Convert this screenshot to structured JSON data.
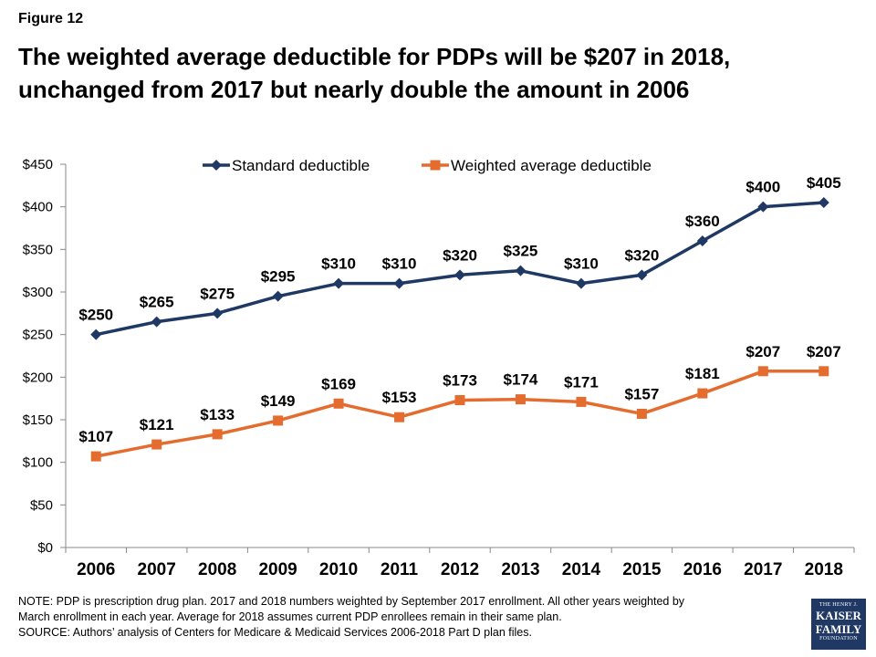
{
  "figure_label": "Figure 12",
  "title_lines": [
    "The weighted average deductible for PDPs will be $207 in 2018,",
    "unchanged from 2017 but nearly double the amount in 2006"
  ],
  "chart_data": {
    "type": "line",
    "x": [
      "2006",
      "2007",
      "2008",
      "2009",
      "2010",
      "2011",
      "2012",
      "2013",
      "2014",
      "2015",
      "2016",
      "2017",
      "2018"
    ],
    "series": [
      {
        "name": "Standard deductible",
        "color": "#1f3864",
        "values": [
          250,
          265,
          275,
          295,
          310,
          310,
          320,
          325,
          310,
          320,
          360,
          400,
          405
        ],
        "labels": [
          "$250",
          "$265",
          "$275",
          "$295",
          "$310",
          "$310",
          "$320",
          "$325",
          "$310",
          "$320",
          "$360",
          "$400",
          "$405"
        ]
      },
      {
        "name": "Weighted average deductible",
        "color": "#e46c2e",
        "values": [
          107,
          121,
          133,
          149,
          169,
          153,
          173,
          174,
          171,
          157,
          181,
          207,
          207
        ],
        "labels": [
          "$107",
          "$121",
          "$133",
          "$149",
          "$169",
          "$153",
          "$173",
          "$174",
          "$171",
          "$157",
          "$181",
          "$207",
          "$207"
        ]
      }
    ],
    "y_ticks": [
      "$0",
      "$50",
      "$100",
      "$150",
      "$200",
      "$250",
      "$300",
      "$350",
      "$400",
      "$450"
    ],
    "ylim": [
      0,
      450
    ],
    "grid": false,
    "legend_position": "top"
  },
  "note_lines": [
    "NOTE: PDP is prescription drug plan. 2017 and 2018 numbers weighted by September 2017 enrollment. All other years weighted by",
    "March enrollment in each year. Average for 2018 assumes current PDP enrollees remain in their same plan.",
    "SOURCE: Authors’ analysis of Centers for Medicare & Medicaid Services 2006-2018 Part D plan files."
  ],
  "logo": {
    "line1": "THE HENRY J.",
    "line2": "KAISER",
    "line3": "FAMILY",
    "line4": "FOUNDATION"
  }
}
